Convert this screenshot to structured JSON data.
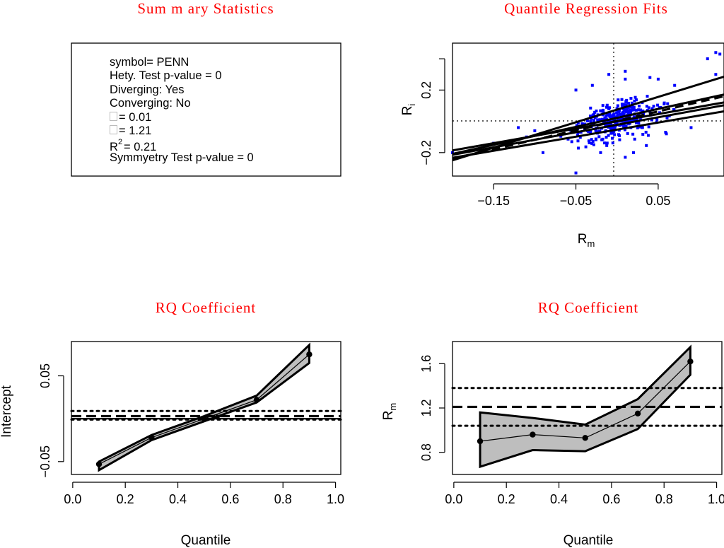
{
  "summary": {
    "title": "Sum m ary Statistics",
    "symbol_line": "symbol= PENN",
    "hety_line": "Hety. Test p-value = 0",
    "diverging_line": "Diverging: Yes",
    "converging_line": "Converging: No",
    "alpha_line": "= 0.01",
    "beta_line": "= 1.21",
    "r2_label": "R",
    "r2_sup": "2",
    "r2_value": "= 0.21",
    "symmetry_line": "Symmyetry Test p-value = 0"
  },
  "colors": {
    "title": "#ff0000",
    "points": "#0000ff",
    "band_fill": "#bebebe",
    "ink": "#000000"
  },
  "chart_data": [
    {
      "id": "qr-fits",
      "type": "scatter",
      "title": "Quantile Regression Fits",
      "xlabel": "R",
      "xlabel_sub": "m",
      "ylabel": "R",
      "ylabel_sub": "i",
      "xlim": [
        -0.2,
        0.13
      ],
      "ylim": [
        -0.35,
        0.5
      ],
      "xticks": [
        -0.15,
        -0.05,
        0.05
      ],
      "xtick_labels": [
        "−0.15",
        "−0.05",
        "0.05"
      ],
      "yticks": [
        -0.2,
        0.2
      ],
      "ytick_labels": [
        "−0.2",
        "0.2"
      ],
      "extra_ytick": 0.4,
      "reference_lines": {
        "v": 0,
        "h": 0,
        "style": "dotted"
      },
      "points_count": 320,
      "points_seed": 7,
      "outliers": [
        [
          0.125,
          0.43
        ],
        [
          0.12,
          0.44
        ],
        [
          0.11,
          0.4
        ],
        [
          0.12,
          0.3
        ],
        [
          0.07,
          0.23
        ],
        [
          0.05,
          0.27
        ],
        [
          0.04,
          0.28
        ],
        [
          0.01,
          0.32
        ],
        [
          0.01,
          0.27
        ],
        [
          -0.03,
          0.23
        ],
        [
          -0.01,
          0.3
        ],
        [
          -0.05,
          0.2
        ],
        [
          -0.11,
          -0.1
        ],
        [
          -0.12,
          -0.04
        ],
        [
          -0.09,
          -0.2
        ],
        [
          -0.1,
          -0.06
        ],
        [
          -0.05,
          -0.33
        ],
        [
          0.02,
          -0.2
        ],
        [
          0.01,
          -0.23
        ],
        [
          -0.02,
          -0.2
        ],
        [
          0.06,
          -0.08
        ],
        [
          0.09,
          -0.04
        ],
        [
          -0.055,
          -0.13
        ],
        [
          -0.15,
          -0.14
        ],
        [
          -0.2,
          -0.2
        ]
      ],
      "lines": [
        {
          "name": "q0.1",
          "intercept": -0.053,
          "slope": 0.9,
          "style": "solid"
        },
        {
          "name": "q0.3",
          "intercept": -0.022,
          "slope": 0.96,
          "style": "solid"
        },
        {
          "name": "q0.5",
          "intercept": 0.0,
          "slope": 0.93,
          "style": "solid"
        },
        {
          "name": "q0.7",
          "intercept": 0.022,
          "slope": 1.15,
          "style": "solid"
        },
        {
          "name": "q0.9",
          "intercept": 0.075,
          "slope": 1.62,
          "style": "solid"
        },
        {
          "name": "ols",
          "intercept": 0.003,
          "slope": 1.21,
          "style": "dashed"
        }
      ]
    },
    {
      "id": "rq-intercept",
      "type": "line",
      "title": "RQ Coefficient",
      "xlabel": "Quantile",
      "ylabel": "Intercept",
      "xlim": [
        -0.005,
        1.02
      ],
      "ylim": [
        -0.065,
        0.09
      ],
      "xticks": [
        0,
        0.2,
        0.4,
        0.6,
        0.8,
        1
      ],
      "xtick_labels": [
        "0.0",
        "0.2",
        "0.4",
        "0.6",
        "0.8",
        "1.0"
      ],
      "yticks": [
        -0.05,
        0.05
      ],
      "ytick_labels": [
        "−0.05",
        "0.05"
      ],
      "x": [
        0.1,
        0.3,
        0.5,
        0.7,
        0.9
      ],
      "values": [
        -0.053,
        -0.022,
        0.0,
        0.022,
        0.075
      ],
      "band_upper": [
        -0.05,
        -0.019,
        0.003,
        0.027,
        0.086
      ],
      "band_lower": [
        -0.06,
        -0.025,
        -0.003,
        0.019,
        0.065
      ],
      "extra_points": [
        [
          0.55,
          0.002
        ]
      ],
      "hlines": [
        {
          "y": 0,
          "style": "solid"
        },
        {
          "y": 0.003,
          "style": "dashed"
        },
        {
          "y": 0.009,
          "style": "dotted"
        },
        {
          "y": -0.001,
          "style": "dotted"
        }
      ]
    },
    {
      "id": "rq-slope",
      "type": "line",
      "title": "RQ Coefficient",
      "xlabel": "Quantile",
      "ylabel": "R",
      "ylabel_sub": "m",
      "xlim": [
        -0.005,
        1.02
      ],
      "ylim": [
        0.6,
        1.8
      ],
      "xticks": [
        0,
        0.2,
        0.4,
        0.6,
        0.8,
        1
      ],
      "xtick_labels": [
        "0.0",
        "0.2",
        "0.4",
        "0.6",
        "0.8",
        "1.0"
      ],
      "yticks": [
        0.8,
        1.2,
        1.6
      ],
      "ytick_labels": [
        "0.8",
        "1.2",
        "1.6"
      ],
      "x": [
        0.1,
        0.3,
        0.5,
        0.7,
        0.9
      ],
      "values": [
        0.9,
        0.96,
        0.93,
        1.15,
        1.62
      ],
      "band_upper": [
        1.16,
        1.11,
        1.05,
        1.28,
        1.75
      ],
      "band_lower": [
        0.67,
        0.82,
        0.81,
        1.01,
        1.5
      ],
      "hlines": [
        {
          "y": 1.21,
          "style": "dashed"
        },
        {
          "y": 1.38,
          "style": "dotted"
        },
        {
          "y": 1.04,
          "style": "dotted"
        }
      ]
    }
  ]
}
